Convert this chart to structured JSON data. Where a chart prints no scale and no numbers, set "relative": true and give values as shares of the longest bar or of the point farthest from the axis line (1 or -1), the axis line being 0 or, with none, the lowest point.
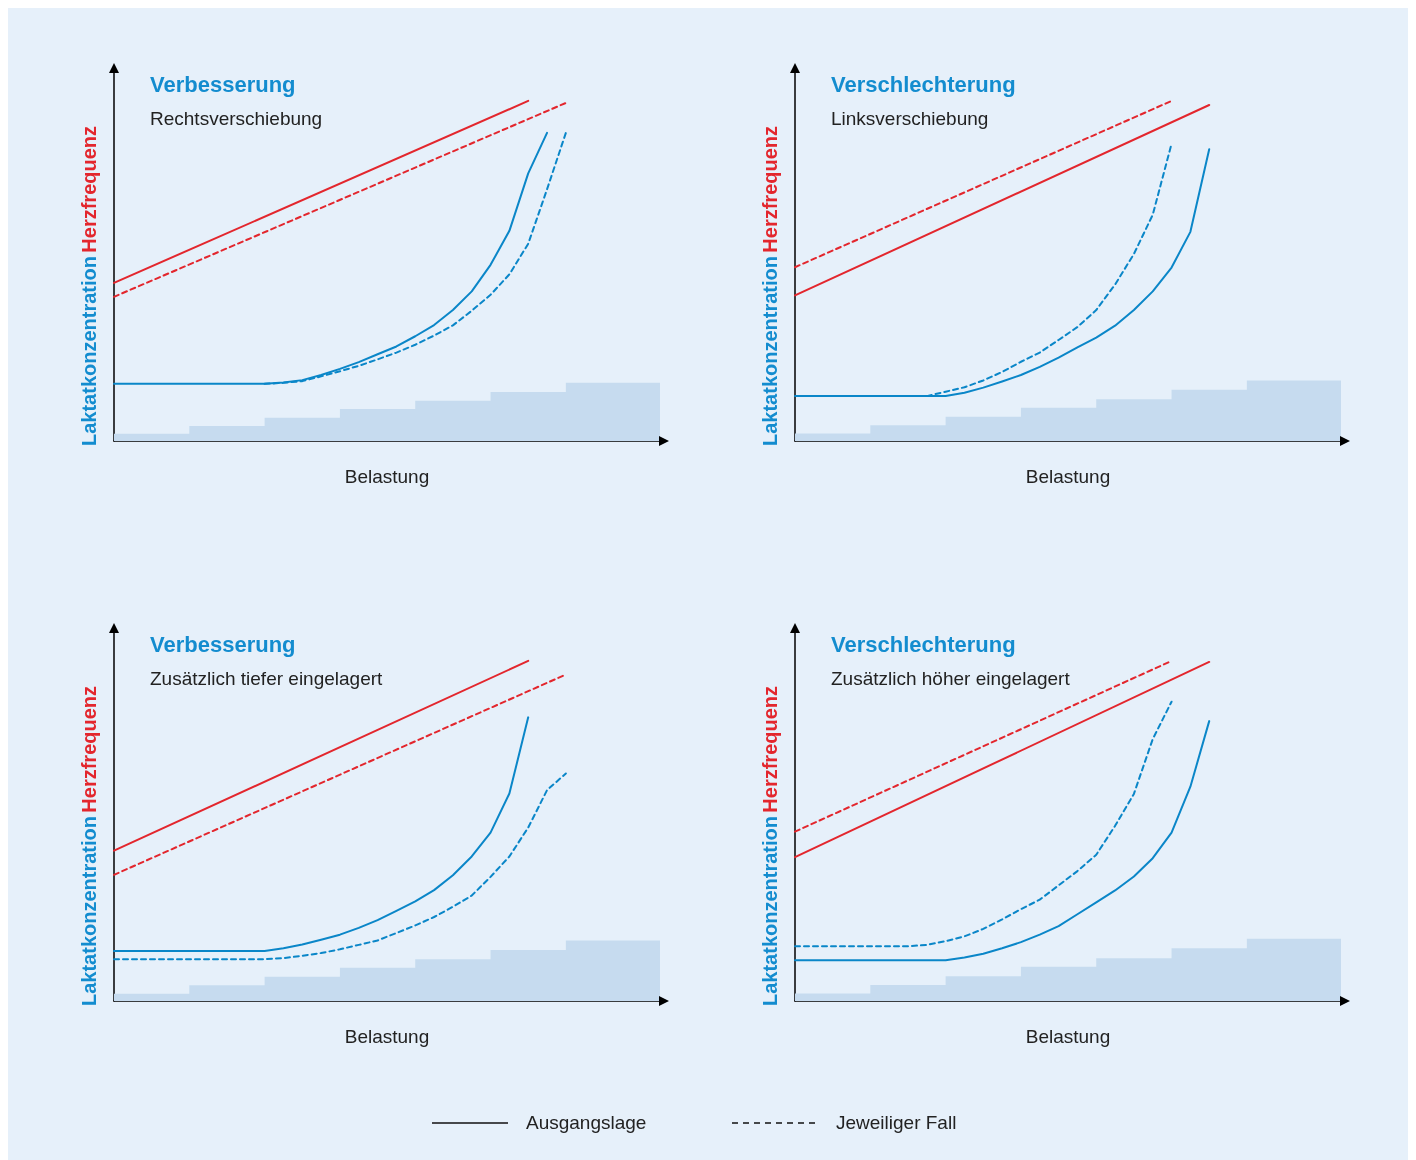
{
  "chart_data": [
    {
      "type": "line",
      "title": "Verbesserung",
      "subtitle": "Rechtsverschiebung",
      "xlabel": "Belastung",
      "ylabel": "Laktatkonzentration Herzfrequenz",
      "relative": true,
      "marker": "none",
      "categories": [
        null,
        null,
        null,
        null,
        null,
        null,
        null,
        null,
        null,
        null,
        null,
        null,
        null,
        null,
        null,
        null,
        null,
        null,
        null,
        null,
        null,
        null,
        null,
        null,
        null,
        null,
        null,
        null,
        null,
        null
      ],
      "series": [
        {
          "type": "area",
          "color": "#c6dbef",
          "values": [
            0.021,
            0.021,
            0.021,
            0.021,
            0.044,
            0.044,
            0.044,
            0.044,
            0.068,
            0.068,
            0.068,
            0.068,
            0.094,
            0.094,
            0.094,
            0.094,
            0.118,
            0.118,
            0.118,
            0.118,
            0.144,
            0.144,
            0.144,
            0.144,
            0.171,
            0.171,
            0.171,
            0.171,
            0.171,
            0.171
          ]
        },
        {
          "color": "#e3262d",
          "values": [
            0.465,
            null,
            null,
            null,
            null,
            null,
            null,
            null,
            null,
            null,
            null,
            null,
            null,
            null,
            null,
            null,
            null,
            null,
            null,
            null,
            null,
            null,
            1.0,
            null,
            null,
            null,
            null,
            null,
            null,
            null
          ]
        },
        {
          "color": "#e3262d",
          "line_style": "dashed",
          "values": [
            0.424,
            null,
            null,
            null,
            null,
            null,
            null,
            null,
            null,
            null,
            null,
            null,
            null,
            null,
            null,
            null,
            null,
            null,
            null,
            null,
            null,
            null,
            null,
            null,
            0.994,
            null,
            null,
            null,
            null,
            null
          ]
        },
        {
          "color": "#0a86c8",
          "values": [
            0.168,
            0.168,
            0.168,
            0.168,
            0.168,
            0.168,
            0.168,
            0.168,
            0.168,
            0.172,
            0.179,
            0.194,
            0.212,
            0.232,
            0.255,
            0.278,
            0.308,
            0.341,
            0.385,
            0.44,
            0.518,
            0.618,
            0.787,
            0.906,
            null,
            null,
            null,
            null,
            null,
            null
          ]
        },
        {
          "color": "#0a86c8",
          "line_style": "dashed",
          "values": [
            null,
            null,
            null,
            null,
            null,
            null,
            null,
            null,
            0.168,
            0.171,
            0.176,
            0.19,
            0.205,
            0.221,
            0.24,
            0.26,
            0.283,
            0.31,
            0.34,
            0.383,
            0.43,
            0.49,
            0.58,
            0.74,
            0.906,
            null,
            null,
            null,
            null,
            null
          ]
        }
      ]
    },
    {
      "type": "line",
      "title": "Verschlechterung",
      "subtitle": "Linksverschiebung",
      "xlabel": "Belastung",
      "ylabel": "Laktatkonzentration Herzfrequenz",
      "relative": true,
      "marker": "none",
      "categories": [
        null,
        null,
        null,
        null,
        null,
        null,
        null,
        null,
        null,
        null,
        null,
        null,
        null,
        null,
        null,
        null,
        null,
        null,
        null,
        null,
        null,
        null,
        null,
        null,
        null,
        null,
        null,
        null,
        null,
        null
      ],
      "series": [
        {
          "type": "area",
          "color": "#c6dbef",
          "values": [
            0.022,
            0.022,
            0.022,
            0.022,
            0.046,
            0.046,
            0.046,
            0.046,
            0.071,
            0.071,
            0.071,
            0.071,
            0.098,
            0.098,
            0.098,
            0.098,
            0.123,
            0.123,
            0.123,
            0.123,
            0.151,
            0.151,
            0.151,
            0.151,
            0.178,
            0.178,
            0.178,
            0.178,
            0.178,
            0.178
          ]
        },
        {
          "color": "#e3262d",
          "values": [
            0.428,
            null,
            null,
            null,
            null,
            null,
            null,
            null,
            null,
            null,
            null,
            null,
            null,
            null,
            null,
            null,
            null,
            null,
            null,
            null,
            null,
            null,
            0.988,
            null,
            null,
            null,
            null,
            null,
            null,
            null
          ]
        },
        {
          "color": "#e3262d",
          "line_style": "dashed",
          "values": [
            0.511,
            null,
            null,
            null,
            null,
            null,
            null,
            null,
            null,
            null,
            null,
            null,
            null,
            null,
            null,
            null,
            null,
            null,
            null,
            null,
            1.0,
            null,
            null,
            null,
            null,
            null,
            null,
            null,
            null,
            null
          ]
        },
        {
          "color": "#0a86c8",
          "values": [
            0.132,
            0.132,
            0.132,
            0.132,
            0.132,
            0.132,
            0.132,
            0.132,
            0.132,
            0.142,
            0.157,
            0.175,
            0.194,
            0.218,
            0.245,
            0.275,
            0.304,
            0.339,
            0.385,
            0.44,
            0.51,
            0.615,
            0.858,
            null,
            null,
            null,
            null,
            null,
            null,
            null
          ]
        },
        {
          "color": "#0a86c8",
          "line_style": "dashed",
          "values": [
            null,
            null,
            null,
            null,
            null,
            null,
            null,
            0.132,
            0.145,
            0.158,
            0.178,
            0.203,
            0.233,
            0.26,
            0.297,
            0.335,
            0.385,
            0.46,
            0.55,
            0.665,
            0.874,
            null,
            null,
            null,
            null,
            null,
            null,
            null,
            null,
            null
          ]
        }
      ]
    },
    {
      "type": "line",
      "title": "Verbesserung",
      "subtitle": "Zusätzlich tiefer eingelagert",
      "xlabel": "Belastung",
      "ylabel": "Laktatkonzentration Herzfrequenz",
      "relative": true,
      "marker": "none",
      "categories": [
        null,
        null,
        null,
        null,
        null,
        null,
        null,
        null,
        null,
        null,
        null,
        null,
        null,
        null,
        null,
        null,
        null,
        null,
        null,
        null,
        null,
        null,
        null,
        null,
        null,
        null,
        null,
        null,
        null,
        null
      ],
      "series": [
        {
          "type": "area",
          "color": "#c6dbef",
          "values": [
            0.021,
            0.021,
            0.021,
            0.021,
            0.046,
            0.046,
            0.046,
            0.046,
            0.071,
            0.071,
            0.071,
            0.071,
            0.098,
            0.098,
            0.098,
            0.098,
            0.123,
            0.123,
            0.123,
            0.123,
            0.15,
            0.15,
            0.15,
            0.15,
            0.178,
            0.178,
            0.178,
            0.178,
            0.178,
            0.178
          ]
        },
        {
          "color": "#e3262d",
          "values": [
            0.442,
            null,
            null,
            null,
            null,
            null,
            null,
            null,
            null,
            null,
            null,
            null,
            null,
            null,
            null,
            null,
            null,
            null,
            null,
            null,
            null,
            null,
            1.0,
            null,
            null,
            null,
            null,
            null,
            null,
            null
          ]
        },
        {
          "color": "#e3262d",
          "line_style": "dashed",
          "values": [
            0.371,
            null,
            null,
            null,
            null,
            null,
            null,
            null,
            null,
            null,
            null,
            null,
            null,
            null,
            null,
            null,
            null,
            null,
            null,
            null,
            null,
            null,
            null,
            null,
            0.96,
            null,
            null,
            null,
            null,
            null
          ]
        },
        {
          "color": "#0a86c8",
          "values": [
            0.147,
            0.147,
            0.147,
            0.147,
            0.147,
            0.147,
            0.147,
            0.147,
            0.147,
            0.155,
            0.166,
            0.18,
            0.195,
            0.215,
            0.238,
            0.265,
            0.293,
            0.326,
            0.37,
            0.425,
            0.495,
            0.61,
            0.834,
            null,
            null,
            null,
            null,
            null,
            null,
            null
          ]
        },
        {
          "color": "#0a86c8",
          "line_style": "dashed",
          "values": [
            0.123,
            0.123,
            0.123,
            0.123,
            0.123,
            0.123,
            0.123,
            0.123,
            0.123,
            0.126,
            0.133,
            0.141,
            0.152,
            0.165,
            0.178,
            0.2,
            0.222,
            0.247,
            0.277,
            0.31,
            0.365,
            0.425,
            0.51,
            0.62,
            0.669,
            null,
            null,
            null,
            null,
            null
          ]
        }
      ]
    },
    {
      "type": "line",
      "title": "Verschlechterung",
      "subtitle": "Zusätzlich höher eingelagert",
      "xlabel": "Belastung",
      "ylabel": "Laktatkonzentration Herzfrequenz",
      "relative": true,
      "marker": "none",
      "categories": [
        null,
        null,
        null,
        null,
        null,
        null,
        null,
        null,
        null,
        null,
        null,
        null,
        null,
        null,
        null,
        null,
        null,
        null,
        null,
        null,
        null,
        null,
        null,
        null,
        null,
        null,
        null,
        null,
        null,
        null
      ],
      "series": [
        {
          "type": "area",
          "color": "#c6dbef",
          "values": [
            0.022,
            0.022,
            0.022,
            0.022,
            0.047,
            0.047,
            0.047,
            0.047,
            0.073,
            0.073,
            0.073,
            0.073,
            0.101,
            0.101,
            0.101,
            0.101,
            0.126,
            0.126,
            0.126,
            0.126,
            0.155,
            0.155,
            0.155,
            0.155,
            0.183,
            0.183,
            0.183,
            0.183,
            0.183,
            0.183
          ]
        },
        {
          "color": "#e3262d",
          "values": [
            0.423,
            null,
            null,
            null,
            null,
            null,
            null,
            null,
            null,
            null,
            null,
            null,
            null,
            null,
            null,
            null,
            null,
            null,
            null,
            null,
            null,
            null,
            0.997,
            null,
            null,
            null,
            null,
            null,
            null,
            null
          ]
        },
        {
          "color": "#e3262d",
          "line_style": "dashed",
          "values": [
            0.498,
            null,
            null,
            null,
            null,
            null,
            null,
            null,
            null,
            null,
            null,
            null,
            null,
            null,
            null,
            null,
            null,
            null,
            null,
            null,
            1.0,
            null,
            null,
            null,
            null,
            null,
            null,
            null,
            null,
            null
          ]
        },
        {
          "color": "#0a86c8",
          "values": [
            0.12,
            0.12,
            0.12,
            0.12,
            0.12,
            0.12,
            0.12,
            0.12,
            0.12,
            0.128,
            0.139,
            0.155,
            0.173,
            0.195,
            0.22,
            0.255,
            0.29,
            0.325,
            0.366,
            0.42,
            0.495,
            0.63,
            0.823,
            null,
            null,
            null,
            null,
            null,
            null,
            null
          ]
        },
        {
          "color": "#0a86c8",
          "line_style": "dashed",
          "values": [
            0.161,
            0.161,
            0.161,
            0.161,
            0.161,
            0.161,
            0.161,
            0.165,
            0.176,
            0.19,
            0.212,
            0.24,
            0.27,
            0.298,
            0.34,
            0.382,
            0.43,
            0.515,
            0.609,
            0.77,
            0.88,
            null,
            null,
            null,
            null,
            null,
            null,
            null,
            null,
            null
          ]
        }
      ]
    },
    {
      "type": "other",
      "annotations": [
        "Ausgangslage",
        "Jeweiliger Fall"
      ]
    }
  ]
}
